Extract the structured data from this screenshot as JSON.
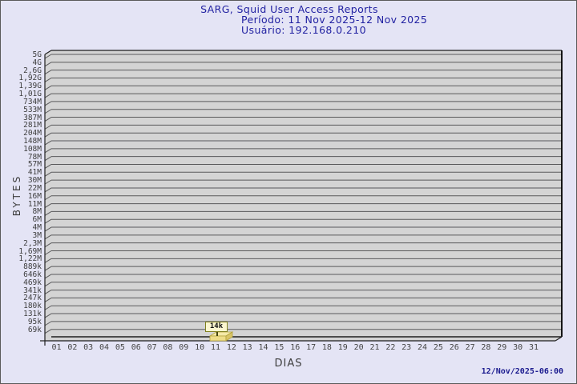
{
  "header": {
    "title": "SARG, Squid User Access Reports",
    "period": "Período: 11 Nov 2025-12 Nov 2025",
    "user": "Usuário: 192.168.0.210"
  },
  "footer": {
    "timestamp": "12/Nov/2025-06:00"
  },
  "chart_data": {
    "type": "bar",
    "title": "SARG, Squid User Access Reports",
    "subtitle_period": "Período: 11 Nov 2025-12 Nov 2025",
    "subtitle_user": "Usuário: 192.168.0.210",
    "xlabel": "DIAS",
    "ylabel": "BYTES",
    "y_scale": "logarithmic",
    "grid": true,
    "legend_position": "none",
    "y_ticks": [
      "5G",
      "4G",
      "2,6G",
      "1,92G",
      "1,39G",
      "1,01G",
      "734M",
      "533M",
      "387M",
      "281M",
      "204M",
      "148M",
      "108M",
      "78M",
      "57M",
      "41M",
      "30M",
      "22M",
      "16M",
      "11M",
      "8M",
      "6M",
      "4M",
      "3M",
      "2,3M",
      "1,69M",
      "1,22M",
      "889k",
      "646k",
      "469k",
      "341k",
      "247k",
      "180k",
      "131k",
      "95k",
      "69k"
    ],
    "x_ticks": [
      "01",
      "02",
      "03",
      "04",
      "05",
      "06",
      "07",
      "08",
      "09",
      "10",
      "11",
      "12",
      "13",
      "14",
      "15",
      "16",
      "17",
      "18",
      "19",
      "20",
      "21",
      "22",
      "23",
      "24",
      "25",
      "26",
      "27",
      "28",
      "29",
      "30",
      "31"
    ],
    "points": [
      {
        "day": "11",
        "label": "14k"
      }
    ],
    "colors": {
      "page_bg": "#e4e4f5",
      "title_text": "#2222a2",
      "plot_bg": "#d4d4d4",
      "grid_line": "#59595b",
      "frame_line": "#1f1f1f",
      "bar_fill": "#eedd88",
      "flag_bg": "#fbf6d0",
      "flag_border": "#80801e",
      "axis_text": "#3e3e3e"
    }
  }
}
